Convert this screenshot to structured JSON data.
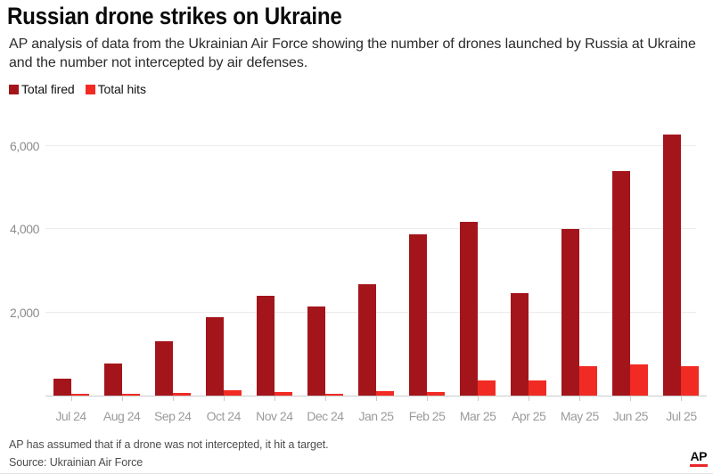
{
  "header": {
    "title": "Russian drone strikes on Ukraine",
    "subtitle": "AP analysis of data from the Ukrainian Air Force showing the number of drones launched by Russia at Ukraine and the number not intercepted by air defenses."
  },
  "legend": {
    "items": [
      {
        "label": "Total fired",
        "color": "#a4151b"
      },
      {
        "label": "Total hits",
        "color": "#f12b24"
      }
    ]
  },
  "chart_data": {
    "type": "bar",
    "title": "Russian drone strikes on Ukraine",
    "categories": [
      "Jul 24",
      "Aug 24",
      "Sep 24",
      "Oct 24",
      "Nov 24",
      "Dec 24",
      "Jan 25",
      "Feb 25",
      "Mar 25",
      "Apr 25",
      "May 25",
      "Jun 25",
      "Jul 25"
    ],
    "series": [
      {
        "name": "Total fired",
        "color": "#a4151b",
        "values": [
          410,
          780,
          1300,
          1880,
          2400,
          2150,
          2670,
          3870,
          4190,
          2460,
          4000,
          5400,
          6280
        ]
      },
      {
        "name": "Total hits",
        "color": "#f12b24",
        "values": [
          40,
          45,
          70,
          120,
          80,
          40,
          100,
          90,
          355,
          375,
          700,
          745,
          700
        ]
      }
    ],
    "xlabel": "",
    "ylabel": "",
    "ylim": [
      0,
      6430
    ],
    "yticks": [
      {
        "value": 2000,
        "label": "2,000"
      },
      {
        "value": 4000,
        "label": "4,000"
      },
      {
        "value": 6000,
        "label": "6,000"
      }
    ],
    "grid": "horizontal",
    "legend_position": "top-left"
  },
  "footer": {
    "note": "AP has assumed that if a drone was not intercepted, it hit a target.",
    "source": "Source: Ukrainian Air Force",
    "logo_text": "AP",
    "logo_underline_color": "#e9262c"
  }
}
